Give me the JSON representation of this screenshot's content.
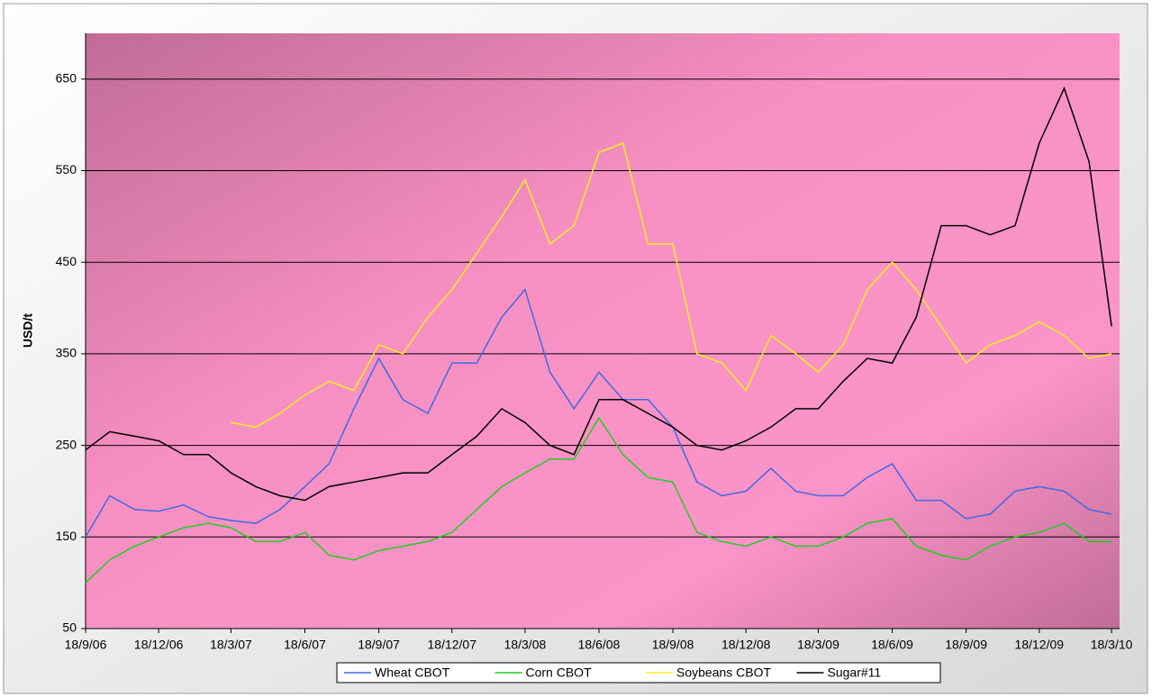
{
  "chart_data": {
    "type": "line",
    "y_label": "USD/t",
    "x": [
      "18/9/06",
      "18/10/06",
      "18/11/06",
      "18/12/06",
      "18/1/07",
      "18/2/07",
      "18/3/07",
      "18/4/07",
      "18/5/07",
      "18/6/07",
      "18/7/07",
      "18/8/07",
      "18/9/07",
      "18/10/07",
      "18/11/07",
      "18/12/07",
      "18/1/08",
      "18/2/08",
      "18/3/08",
      "18/4/08",
      "18/5/08",
      "18/6/08",
      "18/7/08",
      "18/8/08",
      "18/9/08",
      "18/10/08",
      "18/11/08",
      "18/12/08",
      "18/1/09",
      "18/2/09",
      "18/3/09",
      "18/4/09",
      "18/5/09",
      "18/6/09",
      "18/7/09",
      "18/8/09",
      "18/9/09",
      "18/10/09",
      "18/11/09",
      "18/12/09",
      "18/1/10",
      "18/2/10",
      "18/3/10"
    ],
    "series": [
      {
        "name": "Wheat CBOT",
        "color": "#4169e1",
        "values": [
          150,
          195,
          180,
          178,
          185,
          172,
          168,
          165,
          180,
          205,
          230,
          290,
          345,
          300,
          285,
          340,
          340,
          390,
          420,
          330,
          290,
          330,
          300,
          300,
          270,
          210,
          195,
          200,
          225,
          200,
          195,
          195,
          215,
          230,
          190,
          190,
          170,
          175,
          200,
          205,
          200,
          180,
          175
        ]
      },
      {
        "name": "Corn CBOT",
        "color": "#22cc22",
        "values": [
          100,
          125,
          140,
          150,
          160,
          165,
          160,
          145,
          145,
          155,
          130,
          125,
          135,
          140,
          145,
          155,
          180,
          205,
          220,
          235,
          235,
          280,
          240,
          215,
          210,
          155,
          145,
          140,
          150,
          140,
          140,
          150,
          165,
          170,
          140,
          130,
          125,
          140,
          150,
          155,
          165,
          145,
          145
        ]
      },
      {
        "name": "Soybeans CBOT",
        "color": "#ffee22",
        "values": [
          null,
          null,
          null,
          null,
          null,
          null,
          275,
          270,
          285,
          305,
          320,
          310,
          360,
          350,
          390,
          420,
          460,
          500,
          540,
          470,
          490,
          570,
          580,
          470,
          470,
          350,
          340,
          310,
          370,
          350,
          330,
          360,
          420,
          450,
          420,
          380,
          340,
          360,
          370,
          385,
          370,
          345,
          350
        ]
      },
      {
        "name": "Sugar#11",
        "color": "#000000",
        "values": [
          245,
          265,
          260,
          255,
          240,
          240,
          220,
          205,
          195,
          190,
          205,
          210,
          215,
          220,
          220,
          240,
          260,
          290,
          275,
          250,
          240,
          300,
          300,
          285,
          270,
          250,
          245,
          255,
          270,
          290,
          290,
          320,
          345,
          340,
          390,
          490,
          490,
          480,
          490,
          580,
          640,
          560,
          380
        ]
      }
    ],
    "xlim": [
      "18/9/06",
      "28/3/10"
    ],
    "xticks": [
      "18/9/06",
      "18/12/06",
      "18/3/07",
      "18/6/07",
      "18/9/07",
      "18/12/07",
      "18/3/08",
      "18/6/08",
      "18/9/08",
      "18/12/08",
      "18/3/09",
      "18/6/09",
      "18/9/09",
      "18/12/09",
      "18/3/10"
    ],
    "ylim": [
      50,
      700
    ],
    "yticks": [
      50,
      150,
      250,
      350,
      450,
      550,
      650
    ],
    "grid": true,
    "legend": "bottom"
  }
}
